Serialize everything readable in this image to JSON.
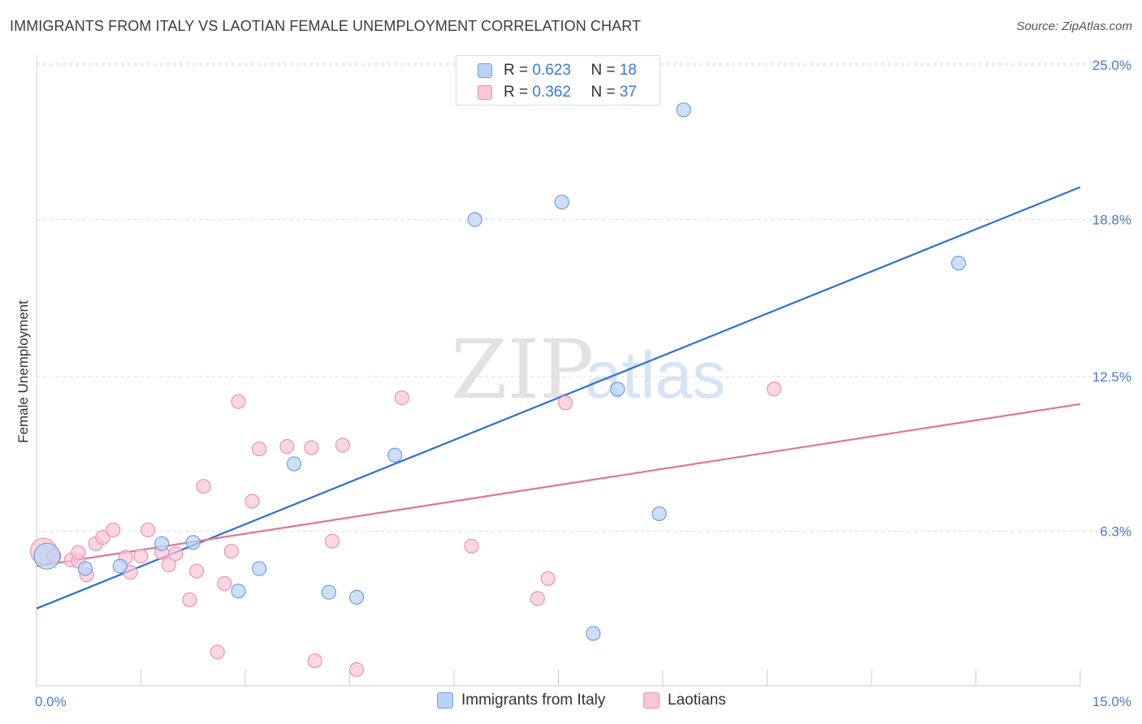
{
  "title": "IMMIGRANTS FROM ITALY VS LAOTIAN FEMALE UNEMPLOYMENT CORRELATION CHART",
  "source": "Source: ZipAtlas.com",
  "watermark": {
    "zip": "ZIP",
    "atlas": "atlas"
  },
  "legend_top": [
    {
      "r_label": "R = ",
      "r_value": "0.623",
      "n_label": "N = ",
      "n_value": "18"
    },
    {
      "r_label": "R = ",
      "r_value": "0.362",
      "n_label": "N = ",
      "n_value": "37"
    }
  ],
  "colors": {
    "italy_fill": "#b9d3f5",
    "italy_stroke": "#6f9ee0",
    "italy_line": "#2f6fd0",
    "laotian_fill": "#f8c6d6",
    "laotian_stroke": "#eb93b1",
    "laotian_line": "#e0739b",
    "grid": "#dddddd",
    "tick_label": "#4a7cc9"
  },
  "chart_data": {
    "type": "scatter",
    "title": "IMMIGRANTS FROM ITALY VS LAOTIAN FEMALE UNEMPLOYMENT CORRELATION CHART",
    "xlabel": "",
    "ylabel": "Female Unemployment",
    "xlim": [
      0,
      15
    ],
    "ylim": [
      0,
      25
    ],
    "x_tick_labels": [
      "0.0%",
      "15.0%"
    ],
    "y_ticks": [
      6.3,
      12.5,
      18.8,
      25.0
    ],
    "y_tick_labels": [
      "6.3%",
      "12.5%",
      "18.8%",
      "25.0%"
    ],
    "grid": "horizontal dashed",
    "legend_position": "bottom-center",
    "series": [
      {
        "name": "Immigrants from Italy",
        "r": 0.623,
        "n": 18,
        "trend": {
          "x": [
            0,
            15
          ],
          "y": [
            3.2,
            20.1
          ]
        },
        "points": [
          {
            "x": 0.15,
            "y": 5.3,
            "big": true
          },
          {
            "x": 0.7,
            "y": 4.8
          },
          {
            "x": 1.2,
            "y": 4.9
          },
          {
            "x": 1.8,
            "y": 5.8
          },
          {
            "x": 2.25,
            "y": 5.85
          },
          {
            "x": 2.9,
            "y": 3.9
          },
          {
            "x": 3.2,
            "y": 4.8
          },
          {
            "x": 3.7,
            "y": 9.0
          },
          {
            "x": 4.2,
            "y": 3.85
          },
          {
            "x": 4.6,
            "y": 3.65
          },
          {
            "x": 5.15,
            "y": 9.35
          },
          {
            "x": 6.3,
            "y": 18.8
          },
          {
            "x": 7.55,
            "y": 19.5
          },
          {
            "x": 8.0,
            "y": 2.2
          },
          {
            "x": 8.35,
            "y": 12.0
          },
          {
            "x": 8.95,
            "y": 7.0
          },
          {
            "x": 9.3,
            "y": 23.2
          },
          {
            "x": 13.25,
            "y": 17.05
          }
        ]
      },
      {
        "name": "Laotians",
        "r": 0.362,
        "n": 37,
        "trend": {
          "x": [
            0,
            15
          ],
          "y": [
            4.9,
            11.4
          ]
        },
        "points": [
          {
            "x": 0.1,
            "y": 5.5,
            "big": true
          },
          {
            "x": 0.25,
            "y": 5.3
          },
          {
            "x": 0.5,
            "y": 5.15
          },
          {
            "x": 0.6,
            "y": 5.1
          },
          {
            "x": 0.6,
            "y": 5.45
          },
          {
            "x": 0.72,
            "y": 4.55
          },
          {
            "x": 0.85,
            "y": 5.8
          },
          {
            "x": 0.95,
            "y": 6.05
          },
          {
            "x": 1.1,
            "y": 6.35
          },
          {
            "x": 1.28,
            "y": 5.25
          },
          {
            "x": 1.35,
            "y": 4.65
          },
          {
            "x": 1.5,
            "y": 5.3
          },
          {
            "x": 1.6,
            "y": 6.35
          },
          {
            "x": 1.8,
            "y": 5.45
          },
          {
            "x": 1.9,
            "y": 4.95
          },
          {
            "x": 2.0,
            "y": 5.4
          },
          {
            "x": 2.2,
            "y": 3.55
          },
          {
            "x": 2.3,
            "y": 4.7
          },
          {
            "x": 2.4,
            "y": 8.1
          },
          {
            "x": 2.6,
            "y": 1.45
          },
          {
            "x": 2.7,
            "y": 4.2
          },
          {
            "x": 2.8,
            "y": 5.5
          },
          {
            "x": 2.9,
            "y": 11.5
          },
          {
            "x": 3.1,
            "y": 7.5
          },
          {
            "x": 3.2,
            "y": 9.6
          },
          {
            "x": 3.6,
            "y": 9.7
          },
          {
            "x": 3.95,
            "y": 9.65
          },
          {
            "x": 4.0,
            "y": 1.1
          },
          {
            "x": 4.25,
            "y": 5.9
          },
          {
            "x": 4.4,
            "y": 9.75
          },
          {
            "x": 4.6,
            "y": 0.75
          },
          {
            "x": 5.25,
            "y": 11.65
          },
          {
            "x": 6.25,
            "y": 5.7
          },
          {
            "x": 7.2,
            "y": 3.6
          },
          {
            "x": 7.35,
            "y": 4.4
          },
          {
            "x": 7.6,
            "y": 11.45
          },
          {
            "x": 10.6,
            "y": 12.0
          }
        ]
      }
    ]
  }
}
